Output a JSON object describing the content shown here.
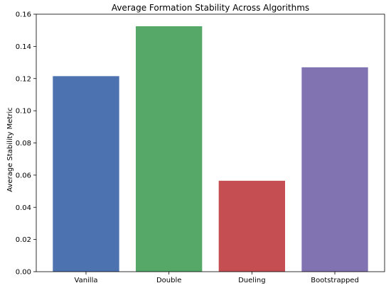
{
  "chart_data": {
    "type": "bar",
    "title": "Average Formation Stability Across Algorithms",
    "xlabel": "",
    "ylabel": "Average Stability Metric",
    "categories": [
      "Vanilla",
      "Double",
      "Dueling",
      "Bootstrapped"
    ],
    "values": [
      0.1215,
      0.1525,
      0.0565,
      0.127
    ],
    "colors": [
      "#4c72b0",
      "#55a868",
      "#c44e52",
      "#8172b2"
    ],
    "ylim": [
      0,
      0.16
    ],
    "yticks": [
      0.0,
      0.02,
      0.04,
      0.06,
      0.08,
      0.1,
      0.12,
      0.14,
      0.16
    ],
    "ytick_labels": [
      "0.00",
      "0.02",
      "0.04",
      "0.06",
      "0.08",
      "0.10",
      "0.12",
      "0.14",
      "0.16"
    ],
    "grid": false,
    "legend": null
  }
}
